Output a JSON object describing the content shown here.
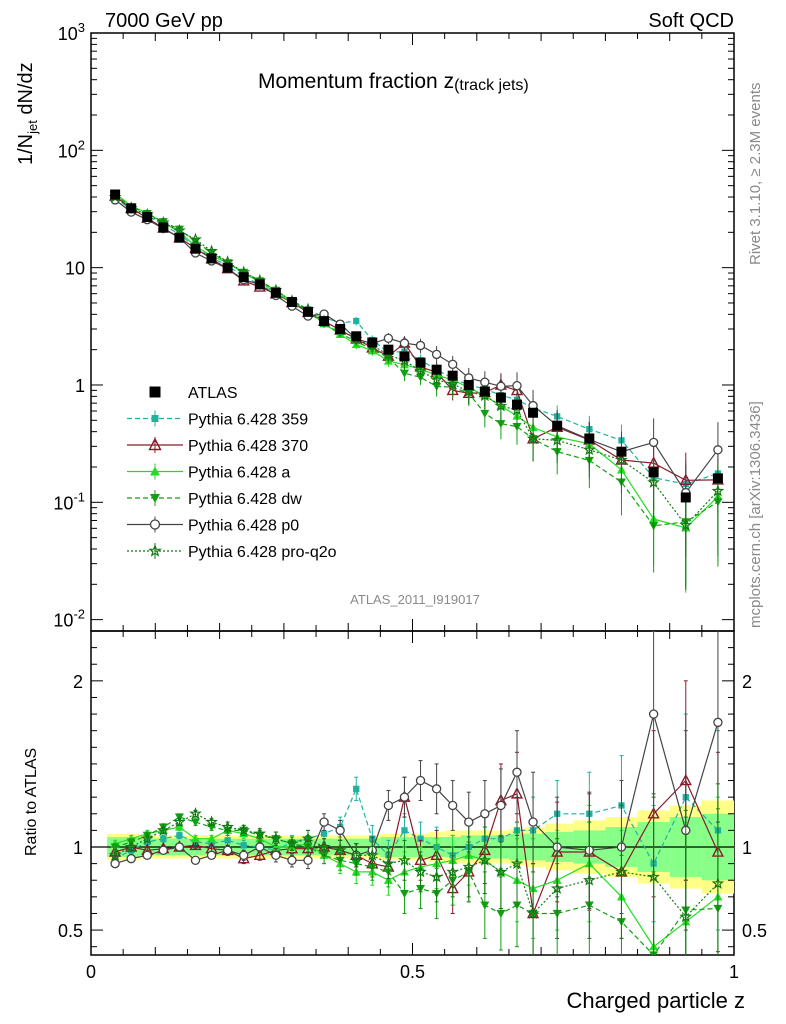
{
  "header": {
    "left": "7000 GeV pp",
    "right": "Soft QCD"
  },
  "side_labels": {
    "rivet": "Rivet 3.1.10, ≥ 2.3M events",
    "mcplots": "mcplots.cern.ch [arXiv:1306.3436]"
  },
  "main_title": {
    "base": "Momentum fraction z",
    "sub": "(track jets)"
  },
  "watermark": "ATLAS_2011_I919017",
  "ylabel_main": "1/N",
  "ylabel_main_sub": "jet",
  "ylabel_main_tail": " dN/dz",
  "ylabel_ratio": "Ratio to ATLAS",
  "xlabel": "Charged particle z",
  "colors": {
    "atlas": "#000000",
    "p359": "#20b2a0",
    "p370": "#8b1a2b",
    "pa": "#22dd22",
    "pdw": "#11a011",
    "pp0": "#444444",
    "pq2o": "#127a12",
    "band_yellow": "#ffff88",
    "band_green": "#88ff88"
  },
  "chart_data": {
    "type": "line",
    "x": [
      0.0375,
      0.0625,
      0.0875,
      0.1125,
      0.1375,
      0.1625,
      0.1875,
      0.2125,
      0.2375,
      0.2625,
      0.2875,
      0.3125,
      0.3375,
      0.3625,
      0.3875,
      0.4125,
      0.4375,
      0.4625,
      0.4875,
      0.5125,
      0.5375,
      0.5625,
      0.5875,
      0.6125,
      0.6375,
      0.6625,
      0.6875,
      0.725,
      0.775,
      0.825,
      0.875,
      0.925,
      0.975
    ],
    "main_panel": {
      "yscale": "log",
      "ylim": [
        0.008,
        1000
      ],
      "xlim": [
        0,
        1
      ],
      "y_ticks": [
        "10^-2",
        "10^-1",
        "1",
        "10",
        "10^2",
        "10^3"
      ]
    },
    "ratio_panel": {
      "ylim": [
        0.35,
        2.3
      ],
      "y_ticks": [
        "0.5",
        "1",
        "2"
      ],
      "x_ticks": [
        "0",
        "0.5",
        "1"
      ]
    },
    "legend": {
      "placement": "left",
      "entries": [
        "ATLAS",
        "Pythia 6.428 359",
        "Pythia 6.428 370",
        "Pythia 6.428 a",
        "Pythia 6.428 dw",
        "Pythia 6.428 p0",
        "Pythia 6.428 pro-q2o"
      ]
    },
    "data": {
      "name": "ATLAS",
      "values": [
        42,
        32,
        27,
        22,
        18,
        14.5,
        12,
        10,
        8.3,
        7.2,
        6.1,
        5.1,
        4.2,
        3.5,
        3.0,
        2.6,
        2.3,
        2.0,
        1.75,
        1.55,
        1.35,
        1.2,
        1.0,
        0.88,
        0.78,
        0.68,
        0.58,
        0.45,
        0.35,
        0.27,
        0.18,
        0.11,
        0.16
      ],
      "band_stat": [
        0.06,
        0.06,
        0.05,
        0.05,
        0.05,
        0.05,
        0.05,
        0.05,
        0.05,
        0.05,
        0.05,
        0.05,
        0.05,
        0.05,
        0.05,
        0.05,
        0.05,
        0.06,
        0.06,
        0.06,
        0.06,
        0.06,
        0.07,
        0.07,
        0.07,
        0.08,
        0.08,
        0.09,
        0.1,
        0.12,
        0.15,
        0.18,
        0.2
      ],
      "band_total": [
        0.08,
        0.08,
        0.07,
        0.07,
        0.07,
        0.07,
        0.07,
        0.07,
        0.07,
        0.07,
        0.07,
        0.07,
        0.07,
        0.07,
        0.07,
        0.07,
        0.07,
        0.08,
        0.08,
        0.08,
        0.09,
        0.1,
        0.1,
        0.1,
        0.1,
        0.11,
        0.12,
        0.14,
        0.16,
        0.18,
        0.22,
        0.25,
        0.28
      ]
    },
    "series": [
      {
        "name": "Pythia 6.428 359",
        "key": "p359",
        "style": "dashed",
        "marker": "square",
        "ratio": [
          0.93,
          0.98,
          1.03,
          1.05,
          1.07,
          1.03,
          1.02,
          1.04,
          1.01,
          1.0,
          0.98,
          1.03,
          1.05,
          1.08,
          1.12,
          1.35,
          1.05,
          0.95,
          1.1,
          1.05,
          1.0,
          0.95,
          1.0,
          1.05,
          1.05,
          1.1,
          1.1,
          1.2,
          1.2,
          1.25,
          0.9,
          1.3,
          1.1
        ],
        "err": [
          0.02,
          0.02,
          0.02,
          0.02,
          0.02,
          0.02,
          0.02,
          0.03,
          0.03,
          0.03,
          0.04,
          0.04,
          0.05,
          0.05,
          0.06,
          0.07,
          0.08,
          0.09,
          0.1,
          0.1,
          0.12,
          0.12,
          0.15,
          0.15,
          0.18,
          0.2,
          0.2,
          0.2,
          0.25,
          0.3,
          0.35,
          0.5,
          0.6
        ]
      },
      {
        "name": "Pythia 6.428 370",
        "key": "p370",
        "style": "solid",
        "marker": "triangle-open",
        "ratio": [
          0.97,
          1.0,
          0.98,
          0.99,
          1.0,
          1.01,
          0.99,
          0.98,
          0.93,
          0.95,
          0.98,
          0.99,
          0.99,
          1.0,
          0.98,
          0.95,
          0.9,
          0.88,
          1.3,
          0.92,
          0.95,
          0.75,
          0.85,
          0.98,
          1.28,
          1.32,
          0.6,
          0.97,
          0.97,
          0.85,
          1.2,
          1.4,
          0.97
        ],
        "err": [
          0.02,
          0.02,
          0.02,
          0.02,
          0.02,
          0.02,
          0.02,
          0.03,
          0.03,
          0.03,
          0.04,
          0.04,
          0.05,
          0.05,
          0.06,
          0.07,
          0.08,
          0.09,
          0.12,
          0.12,
          0.15,
          0.15,
          0.18,
          0.2,
          0.22,
          0.25,
          0.3,
          0.3,
          0.35,
          0.4,
          0.5,
          0.6,
          0.6
        ]
      },
      {
        "name": "Pythia 6.428 a",
        "key": "pa",
        "style": "solid",
        "marker": "triangle",
        "ratio": [
          1.02,
          1.05,
          1.08,
          1.1,
          1.12,
          1.05,
          1.05,
          1.1,
          1.08,
          1.05,
          1.0,
          1.0,
          1.02,
          0.95,
          0.9,
          0.85,
          0.85,
          0.8,
          0.85,
          0.88,
          0.9,
          0.92,
          0.95,
          0.92,
          0.85,
          0.8,
          0.75,
          0.8,
          0.9,
          0.7,
          0.4,
          0.55,
          0.7
        ],
        "err": [
          0.02,
          0.02,
          0.02,
          0.02,
          0.02,
          0.02,
          0.02,
          0.03,
          0.03,
          0.03,
          0.04,
          0.04,
          0.05,
          0.05,
          0.06,
          0.07,
          0.08,
          0.09,
          0.12,
          0.12,
          0.15,
          0.15,
          0.18,
          0.2,
          0.22,
          0.25,
          0.3,
          0.3,
          0.35,
          0.4,
          0.5,
          0.6,
          0.6
        ]
      },
      {
        "name": "Pythia 6.428 dw",
        "key": "pdw",
        "style": "dashed",
        "marker": "triangle-down",
        "ratio": [
          1.0,
          1.03,
          1.07,
          1.12,
          1.18,
          1.15,
          1.12,
          1.1,
          1.1,
          1.07,
          1.05,
          1.02,
          1.0,
          0.95,
          0.92,
          0.9,
          0.88,
          0.85,
          0.72,
          0.75,
          0.72,
          0.8,
          0.85,
          0.65,
          0.6,
          0.65,
          0.6,
          0.6,
          0.65,
          0.55,
          0.35,
          0.62,
          0.63
        ],
        "err": [
          0.02,
          0.02,
          0.02,
          0.02,
          0.02,
          0.02,
          0.02,
          0.03,
          0.03,
          0.03,
          0.04,
          0.04,
          0.05,
          0.05,
          0.06,
          0.07,
          0.08,
          0.09,
          0.12,
          0.12,
          0.15,
          0.15,
          0.18,
          0.2,
          0.22,
          0.25,
          0.3,
          0.3,
          0.35,
          0.4,
          0.5,
          0.6,
          0.6
        ]
      },
      {
        "name": "Pythia 6.428 p0",
        "key": "pp0",
        "style": "solid",
        "marker": "circle-open",
        "ratio": [
          0.9,
          0.93,
          0.95,
          0.98,
          1.0,
          0.92,
          0.95,
          0.98,
          0.95,
          1.0,
          0.95,
          0.92,
          0.92,
          1.15,
          1.1,
          0.95,
          0.98,
          1.25,
          1.3,
          1.4,
          1.35,
          1.25,
          1.15,
          1.2,
          1.25,
          1.45,
          1.15,
          1.0,
          0.98,
          1.0,
          1.8,
          1.1,
          1.75
        ],
        "err": [
          0.02,
          0.02,
          0.02,
          0.02,
          0.02,
          0.02,
          0.02,
          0.03,
          0.03,
          0.03,
          0.04,
          0.04,
          0.05,
          0.05,
          0.06,
          0.07,
          0.08,
          0.09,
          0.12,
          0.12,
          0.15,
          0.15,
          0.18,
          0.2,
          0.22,
          0.25,
          0.3,
          0.3,
          0.35,
          0.4,
          0.5,
          0.6,
          0.6
        ]
      },
      {
        "name": "Pythia 6.428 pro-q2o",
        "key": "pq2o",
        "style": "dotted",
        "marker": "star",
        "ratio": [
          0.95,
          1.0,
          1.05,
          1.1,
          1.15,
          1.2,
          1.15,
          1.12,
          1.1,
          1.08,
          1.05,
          1.02,
          1.05,
          1.0,
          0.98,
          0.95,
          0.95,
          0.9,
          0.92,
          0.85,
          0.82,
          0.85,
          0.88,
          0.92,
          0.85,
          0.9,
          0.6,
          0.75,
          0.8,
          0.85,
          0.82,
          0.58,
          0.78
        ],
        "err": [
          0.02,
          0.02,
          0.02,
          0.02,
          0.02,
          0.02,
          0.02,
          0.03,
          0.03,
          0.03,
          0.04,
          0.04,
          0.05,
          0.05,
          0.06,
          0.07,
          0.08,
          0.09,
          0.12,
          0.12,
          0.15,
          0.15,
          0.18,
          0.2,
          0.22,
          0.25,
          0.3,
          0.3,
          0.35,
          0.4,
          0.5,
          0.6,
          0.6
        ]
      }
    ]
  }
}
